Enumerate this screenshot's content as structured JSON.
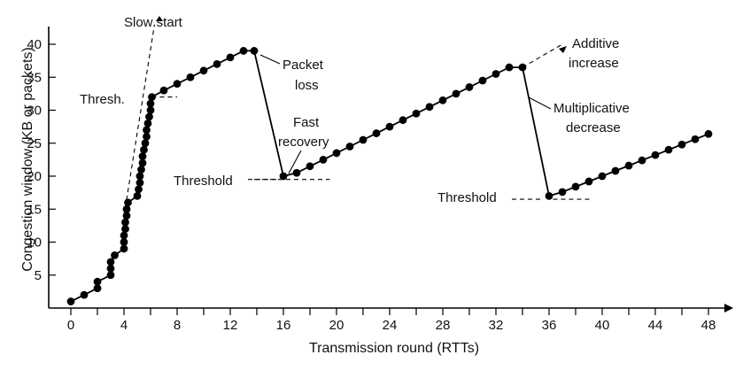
{
  "chart_data": {
    "type": "line",
    "xlabel": "Transmission round (RTTs)",
    "ylabel": "Congestion window (KB or packets)",
    "xlim": [
      0,
      49
    ],
    "ylim": [
      0,
      43
    ],
    "xticks": [
      0,
      4,
      8,
      12,
      16,
      20,
      24,
      28,
      32,
      36,
      40,
      44,
      48
    ],
    "xticks_minor": [
      2,
      6,
      10,
      14,
      18,
      22,
      26,
      30,
      34,
      38,
      42,
      46
    ],
    "yticks": [
      5,
      10,
      15,
      20,
      25,
      30,
      35,
      40
    ],
    "grid": false,
    "series": [
      {
        "points": [
          [
            0,
            1
          ],
          [
            1,
            2
          ],
          [
            2,
            3
          ],
          [
            2,
            4
          ],
          [
            3,
            5
          ],
          [
            3,
            6
          ],
          [
            3,
            7
          ],
          [
            3.3,
            8
          ],
          [
            4,
            9
          ],
          [
            4,
            10
          ],
          [
            4,
            11
          ],
          [
            4.1,
            12
          ],
          [
            4.1,
            13
          ],
          [
            4.2,
            14
          ],
          [
            4.2,
            15
          ],
          [
            4.3,
            16
          ],
          [
            5,
            17
          ],
          [
            5.1,
            18
          ],
          [
            5.2,
            19
          ],
          [
            5.2,
            20
          ],
          [
            5.3,
            21
          ],
          [
            5.4,
            22
          ],
          [
            5.4,
            23
          ],
          [
            5.5,
            24
          ],
          [
            5.6,
            25
          ],
          [
            5.7,
            26
          ],
          [
            5.7,
            27
          ],
          [
            5.8,
            28
          ],
          [
            5.9,
            29
          ],
          [
            6,
            30
          ],
          [
            6,
            31
          ],
          [
            6.1,
            32
          ],
          [
            7,
            33
          ],
          [
            8,
            34
          ],
          [
            9,
            35
          ],
          [
            10,
            36
          ],
          [
            11,
            37
          ],
          [
            12,
            38
          ],
          [
            13,
            39
          ],
          [
            13.8,
            39
          ],
          [
            16,
            20
          ],
          [
            17,
            20.5
          ],
          [
            18,
            21.5
          ],
          [
            19,
            22.5
          ],
          [
            20,
            23.5
          ],
          [
            21,
            24.5
          ],
          [
            22,
            25.5
          ],
          [
            23,
            26.5
          ],
          [
            24,
            27.5
          ],
          [
            25,
            28.5
          ],
          [
            26,
            29.5
          ],
          [
            27,
            30.5
          ],
          [
            28,
            31.5
          ],
          [
            29,
            32.5
          ],
          [
            30,
            33.5
          ],
          [
            31,
            34.5
          ],
          [
            32,
            35.5
          ],
          [
            33,
            36.5
          ],
          [
            34,
            36.5
          ],
          [
            36,
            17
          ],
          [
            37,
            17.6
          ],
          [
            38,
            18.4
          ],
          [
            39,
            19.2
          ],
          [
            40,
            20
          ],
          [
            41,
            20.8
          ],
          [
            42,
            21.6
          ],
          [
            43,
            22.4
          ],
          [
            44,
            23.2
          ],
          [
            45,
            24
          ],
          [
            46,
            24.8
          ],
          [
            47,
            25.6
          ],
          [
            48,
            26.4
          ]
        ]
      }
    ],
    "annotations": {
      "slow_start": "Slow start",
      "thresh_short": "Thresh.",
      "packet_loss_1": "Packet",
      "packet_loss_2": "loss",
      "fast_recovery_1": "Fast",
      "fast_recovery_2": "recovery",
      "threshold_1": "Threshold",
      "threshold_2": "Threshold",
      "additive_1": "Additive",
      "additive_2": "increase",
      "multiplicative_1": "Multiplicative",
      "multiplicative_2": "decrease"
    }
  }
}
